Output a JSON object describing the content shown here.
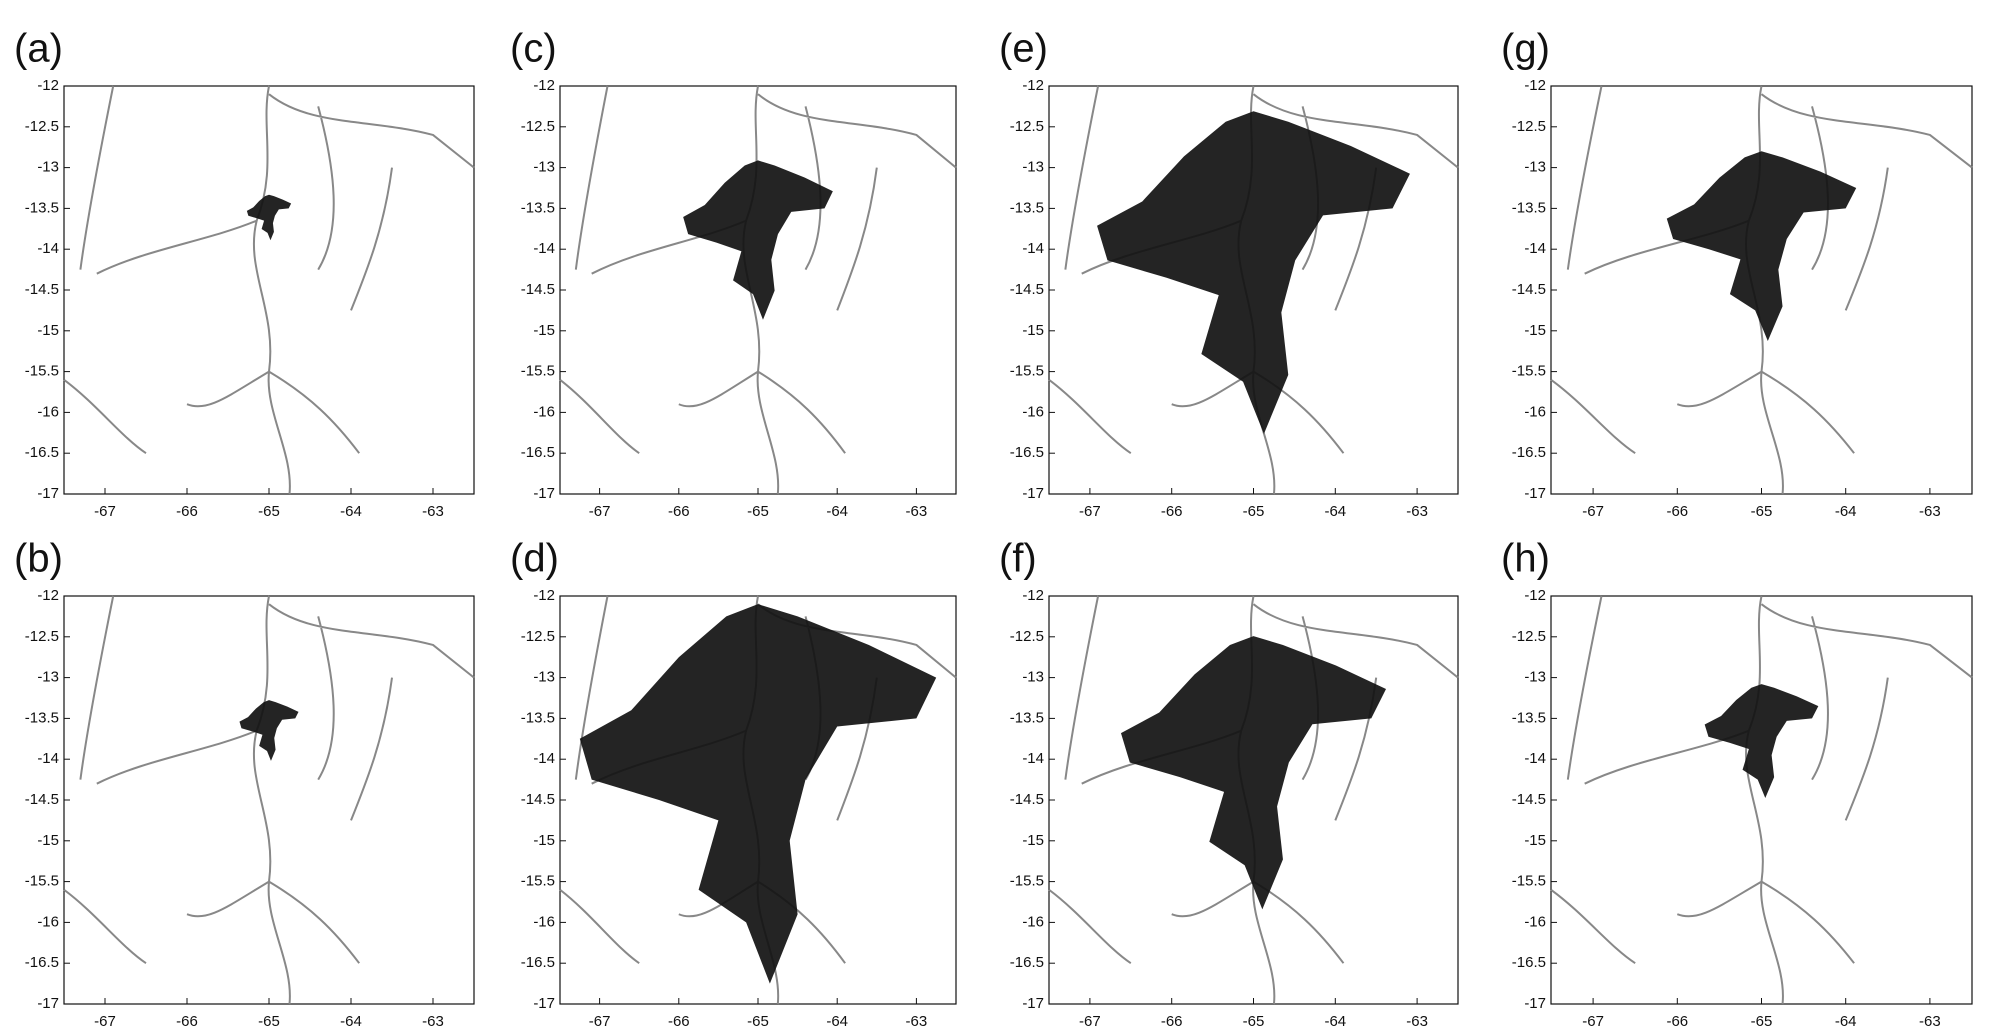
{
  "chart_data": [
    {
      "type": "map",
      "panel": "(a)",
      "xlim": [
        -67.5,
        -62.5
      ],
      "ylim": [
        -17,
        -12
      ],
      "xticks": [
        -67,
        -66,
        -65,
        -64,
        -63
      ],
      "yticks": [
        -17,
        -16.5,
        -16,
        -15.5,
        -15,
        -14.5,
        -14,
        -13.5,
        -13,
        -12.5,
        -12
      ]
    },
    {
      "type": "map",
      "panel": "(b)",
      "xlim": [
        -67.5,
        -62.5
      ],
      "ylim": [
        -17,
        -12
      ],
      "xticks": [
        -67,
        -66,
        -65,
        -64,
        -63
      ],
      "yticks": [
        -17,
        -16.5,
        -16,
        -15.5,
        -15,
        -14.5,
        -14,
        -13.5,
        -13,
        -12.5,
        -12
      ]
    },
    {
      "type": "map",
      "panel": "(c)",
      "xlim": [
        -67.5,
        -62.5
      ],
      "ylim": [
        -17,
        -12
      ],
      "xticks": [
        -67,
        -66,
        -65,
        -64,
        -63
      ],
      "yticks": [
        -17,
        -16.5,
        -16,
        -15.5,
        -15,
        -14.5,
        -14,
        -13.5,
        -13,
        -12.5,
        -12
      ]
    },
    {
      "type": "map",
      "panel": "(d)",
      "xlim": [
        -67.5,
        -62.5
      ],
      "ylim": [
        -17,
        -12
      ],
      "xticks": [
        -67,
        -66,
        -65,
        -64,
        -63
      ],
      "yticks": [
        -17,
        -16.5,
        -16,
        -15.5,
        -15,
        -14.5,
        -14,
        -13.5,
        -13,
        -12.5,
        -12
      ]
    },
    {
      "type": "map",
      "panel": "(e)",
      "xlim": [
        -67.5,
        -62.5
      ],
      "ylim": [
        -17,
        -12
      ],
      "xticks": [
        -67,
        -66,
        -65,
        -64,
        -63
      ],
      "yticks": [
        -17,
        -16.5,
        -16,
        -15.5,
        -15,
        -14.5,
        -14,
        -13.5,
        -13,
        -12.5,
        -12
      ]
    },
    {
      "type": "map",
      "panel": "(f)",
      "xlim": [
        -67.5,
        -62.5
      ],
      "ylim": [
        -17,
        -12
      ],
      "xticks": [
        -67,
        -66,
        -65,
        -64,
        -63
      ],
      "yticks": [
        -17,
        -16.5,
        -16,
        -15.5,
        -15,
        -14.5,
        -14,
        -13.5,
        -13,
        -12.5,
        -12
      ]
    },
    {
      "type": "map",
      "panel": "(g)",
      "xlim": [
        -67.5,
        -62.5
      ],
      "ylim": [
        -17,
        -12
      ],
      "xticks": [
        -67,
        -66,
        -65,
        -64,
        -63
      ],
      "yticks": [
        -17,
        -16.5,
        -16,
        -15.5,
        -15,
        -14.5,
        -14,
        -13.5,
        -13,
        -12.5,
        -12
      ]
    },
    {
      "type": "map",
      "panel": "(h)",
      "xlim": [
        -67.5,
        -62.5
      ],
      "ylim": [
        -17,
        -12
      ],
      "xticks": [
        -67,
        -66,
        -65,
        -64,
        -63
      ],
      "yticks": [
        -17,
        -16.5,
        -16,
        -15.5,
        -15,
        -14.5,
        -14,
        -13.5,
        -13,
        -12.5,
        -12
      ]
    }
  ]
}
